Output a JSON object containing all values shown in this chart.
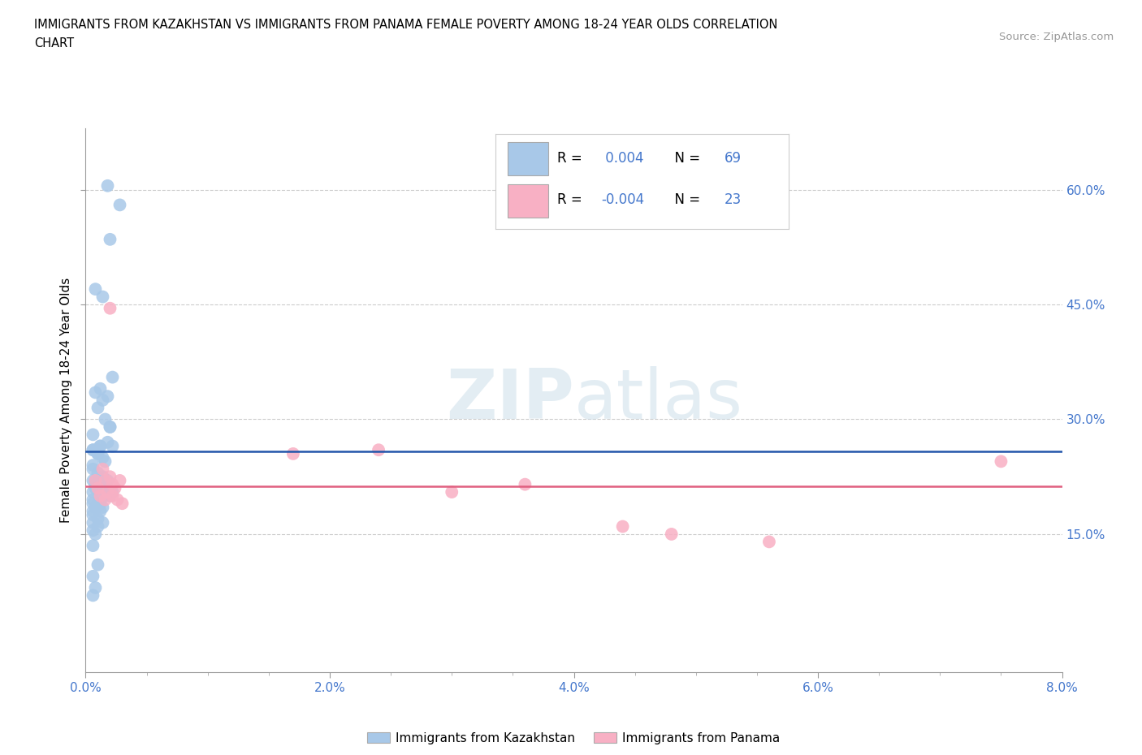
{
  "title_line1": "IMMIGRANTS FROM KAZAKHSTAN VS IMMIGRANTS FROM PANAMA FEMALE POVERTY AMONG 18-24 YEAR OLDS CORRELATION",
  "title_line2": "CHART",
  "source": "Source: ZipAtlas.com",
  "xlim": [
    0.0,
    8.0
  ],
  "ylim": [
    -3.0,
    68.0
  ],
  "xlabel_vals": [
    0.0,
    2.0,
    4.0,
    6.0,
    8.0
  ],
  "xlabel_ticks": [
    "0.0%",
    "",
    "2.0%",
    "",
    "4.0%",
    "",
    "6.0%",
    "",
    "8.0%"
  ],
  "ylabel_vals": [
    15.0,
    30.0,
    45.0,
    60.0
  ],
  "ylabel_ticks": [
    "15.0%",
    "30.0%",
    "45.0%",
    "60.0%"
  ],
  "ylabel_label": "Female Poverty Among 18-24 Year Olds",
  "kaz_R": 0.004,
  "kaz_N": 69,
  "pan_R": -0.004,
  "pan_N": 23,
  "kaz_color": "#a8c8e8",
  "pan_color": "#f8b0c4",
  "kaz_line_color": "#2255aa",
  "pan_line_color": "#e06080",
  "watermark_color": "#d8e8f0",
  "legend1": "Immigrants from Kazakhstan",
  "legend2": "Immigrants from Panama",
  "kaz_x": [
    0.18,
    0.28,
    0.2,
    0.08,
    0.14,
    0.22,
    0.12,
    0.18,
    0.1,
    0.16,
    0.06,
    0.12,
    0.08,
    0.14,
    0.2,
    0.1,
    0.16,
    0.22,
    0.06,
    0.1,
    0.08,
    0.12,
    0.18,
    0.06,
    0.1,
    0.14,
    0.2,
    0.08,
    0.12,
    0.16,
    0.22,
    0.06,
    0.1,
    0.14,
    0.18,
    0.06,
    0.08,
    0.12,
    0.16,
    0.2,
    0.06,
    0.1,
    0.14,
    0.18,
    0.06,
    0.08,
    0.12,
    0.16,
    0.06,
    0.1,
    0.14,
    0.06,
    0.08,
    0.12,
    0.06,
    0.1,
    0.14,
    0.06,
    0.08,
    0.12,
    0.06,
    0.1,
    0.06,
    0.08,
    0.06,
    0.1,
    0.06,
    0.08,
    0.06
  ],
  "kaz_y": [
    60.5,
    58.0,
    53.5,
    47.0,
    46.0,
    35.5,
    34.0,
    33.0,
    31.5,
    30.0,
    28.0,
    26.5,
    33.5,
    32.5,
    29.0,
    26.0,
    24.5,
    26.5,
    26.0,
    25.5,
    26.0,
    26.5,
    27.0,
    26.0,
    25.5,
    25.0,
    29.0,
    22.0,
    21.5,
    21.0,
    20.5,
    23.5,
    23.0,
    22.5,
    22.0,
    24.0,
    21.5,
    21.0,
    20.5,
    20.0,
    22.0,
    21.5,
    21.0,
    20.5,
    20.5,
    21.0,
    20.5,
    20.0,
    19.5,
    19.0,
    18.5,
    19.0,
    18.5,
    18.0,
    17.5,
    17.0,
    16.5,
    18.0,
    18.5,
    19.0,
    16.5,
    16.0,
    15.5,
    15.0,
    13.5,
    11.0,
    9.5,
    8.0,
    7.0
  ],
  "pan_x": [
    0.08,
    0.14,
    0.2,
    0.1,
    0.16,
    0.22,
    0.12,
    0.18,
    0.24,
    0.16,
    0.22,
    0.28,
    0.2,
    0.3,
    1.7,
    2.4,
    3.0,
    3.6,
    4.4,
    4.8,
    5.6,
    7.5,
    0.26
  ],
  "pan_y": [
    22.0,
    23.5,
    22.5,
    21.0,
    22.0,
    21.5,
    20.0,
    20.5,
    21.0,
    19.5,
    20.0,
    22.0,
    44.5,
    19.0,
    25.5,
    26.0,
    20.5,
    21.5,
    16.0,
    15.0,
    14.0,
    24.5,
    19.5
  ],
  "kaz_trend_y": [
    25.5,
    25.5
  ],
  "pan_trend_y": [
    21.5,
    21.5
  ]
}
